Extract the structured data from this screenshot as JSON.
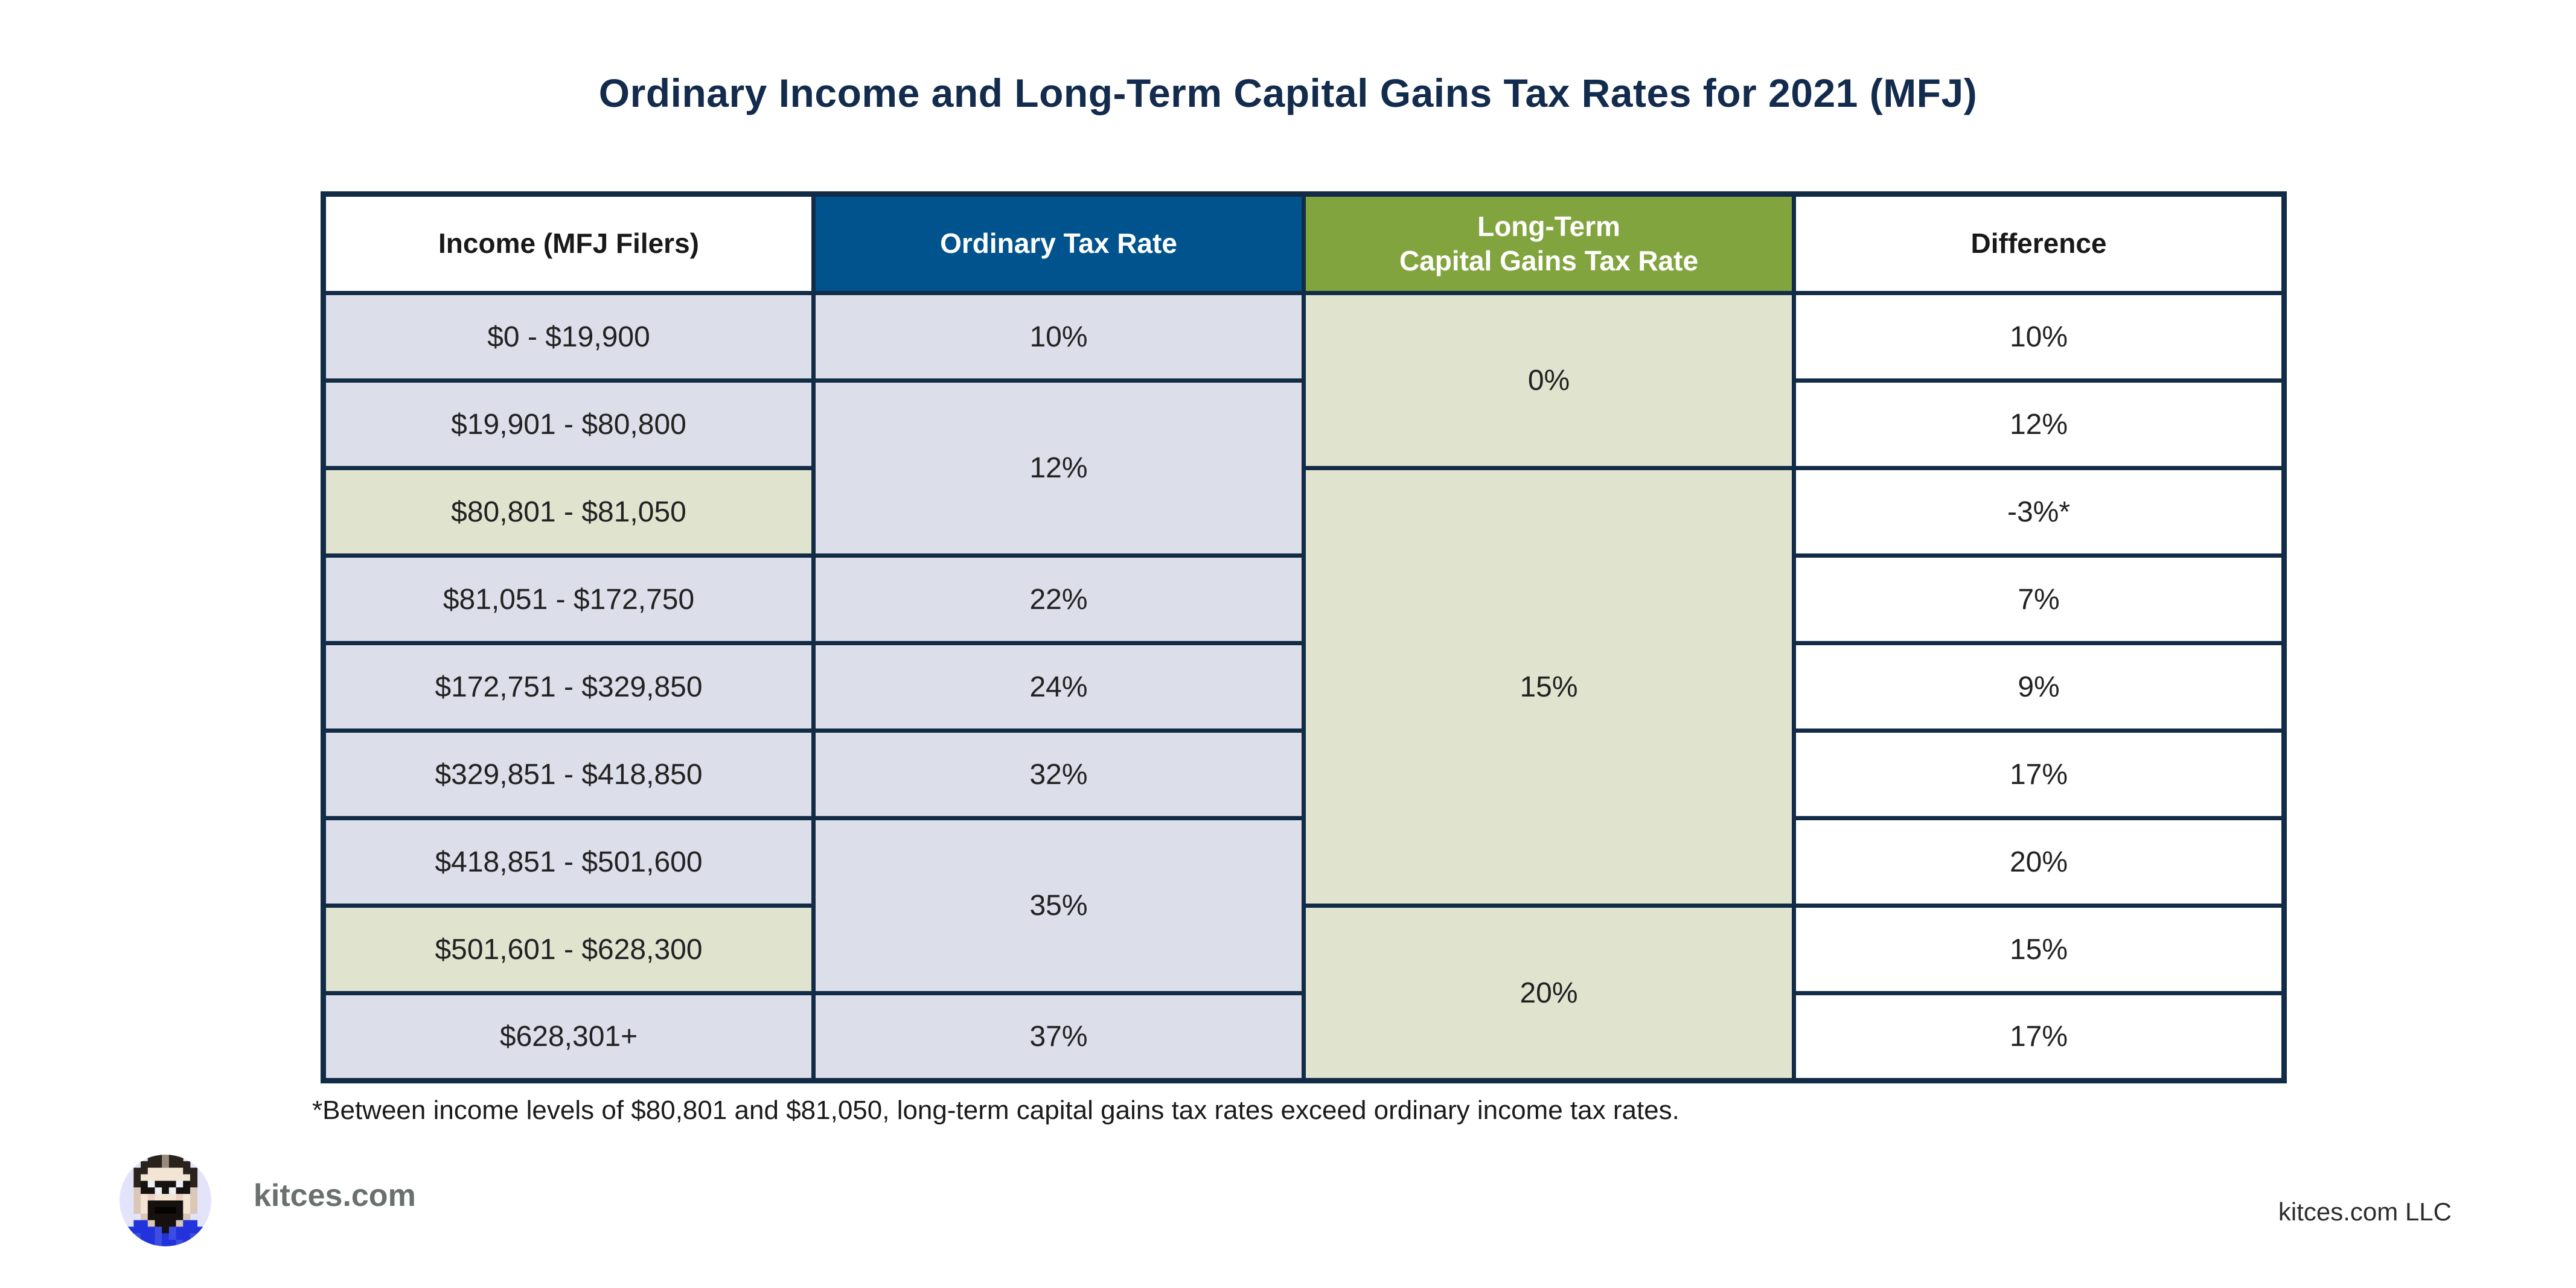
{
  "title": "Ordinary Income and Long-Term Capital Gains Tax Rates for 2021 (MFJ)",
  "table": {
    "headers": [
      "Income (MFJ Filers)",
      "Ordinary Tax Rate",
      "Long-Term\nCapital Gains Tax Rate",
      "Difference"
    ],
    "rows": [
      {
        "income": "$0 - $19,900",
        "ordinary": "10%",
        "ltcg": "0%",
        "difference": "10%"
      },
      {
        "income": "$19,901 - $80,800",
        "ordinary": "12%",
        "difference": "12%"
      },
      {
        "income": "$80,801 - $81,050",
        "ltcg": "15%",
        "difference": "-3%*"
      },
      {
        "income": "$81,051 - $172,750",
        "ordinary": "22%",
        "difference": "7%"
      },
      {
        "income": "$172,751 - $329,850",
        "ordinary": "24%",
        "difference": "9%"
      },
      {
        "income": "$329,851 - $418,850",
        "ordinary": "32%",
        "difference": "17%"
      },
      {
        "income": "$418,851 - $501,600",
        "ordinary": "35%",
        "difference": "20%"
      },
      {
        "income": "$501,601 - $628,300",
        "ltcg": "20%",
        "difference": "15%"
      },
      {
        "income": "$628,301+",
        "ordinary": "37%",
        "difference": "17%"
      }
    ]
  },
  "footnote": "*Between income levels of $80,801 and $81,050, long-term capital gains tax rates exceed ordinary income tax rates.",
  "footer": {
    "brand": "kitces.com",
    "company": "kitces.com LLC"
  },
  "colors": {
    "title_navy": "#132c4e",
    "border_navy": "#122c47",
    "header_blue": "#01538d",
    "header_green": "#82a43f",
    "cell_lavender": "#dcdee9",
    "cell_light_green": "#e0e4cf",
    "brand_gray": "#69706e"
  },
  "chart_data": {
    "type": "table",
    "title": "Ordinary Income and Long-Term Capital Gains Tax Rates for 2021 (MFJ)",
    "columns": [
      "Income (MFJ Filers)",
      "Ordinary Tax Rate",
      "Long-Term Capital Gains Tax Rate",
      "Difference"
    ],
    "rows": [
      [
        "$0 - $19,900",
        "10%",
        "0%",
        "10%"
      ],
      [
        "$19,901 - $80,800",
        "12%",
        "0%",
        "12%"
      ],
      [
        "$80,801 - $81,050",
        "12%",
        "15%",
        "-3%*"
      ],
      [
        "$81,051 - $172,750",
        "22%",
        "15%",
        "7%"
      ],
      [
        "$172,751 - $329,850",
        "24%",
        "15%",
        "9%"
      ],
      [
        "$329,851 - $418,850",
        "32%",
        "15%",
        "17%"
      ],
      [
        "$418,851 - $501,600",
        "35%",
        "15%",
        "20%"
      ],
      [
        "$501,601 - $628,300",
        "35%",
        "20%",
        "15%"
      ],
      [
        "$628,301+",
        "37%",
        "20%",
        "17%"
      ]
    ],
    "merged_cells": [
      {
        "column": "Ordinary Tax Rate",
        "value": "12%",
        "rows": [
          2,
          3
        ]
      },
      {
        "column": "Ordinary Tax Rate",
        "value": "35%",
        "rows": [
          7,
          8
        ]
      },
      {
        "column": "Long-Term Capital Gains Tax Rate",
        "value": "0%",
        "rows": [
          1,
          2
        ]
      },
      {
        "column": "Long-Term Capital Gains Tax Rate",
        "value": "15%",
        "rows": [
          3,
          4,
          5,
          6,
          7
        ]
      },
      {
        "column": "Long-Term Capital Gains Tax Rate",
        "value": "20%",
        "rows": [
          8,
          9
        ]
      }
    ],
    "highlighted_income_rows": [
      3,
      8
    ],
    "footnote": "*Between income levels of $80,801 and $81,050, long-term capital gains tax rates exceed ordinary income tax rates.",
    "legend_position": "none",
    "grid": true
  }
}
